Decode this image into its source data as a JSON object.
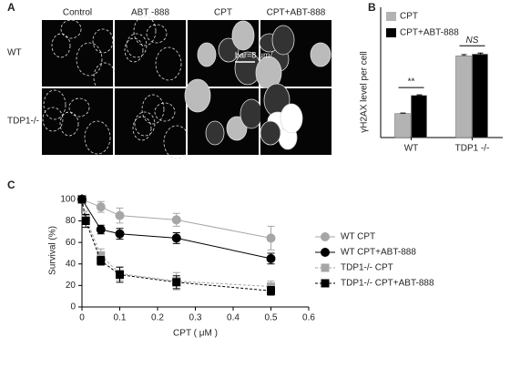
{
  "panel_a": {
    "label": "A",
    "columns": [
      "Control",
      "ABT -888",
      "CPT",
      "CPT+ABT-888"
    ],
    "rows": [
      "WT",
      "TDP1-/-"
    ],
    "scale_bar": "bar=8 μm"
  },
  "chart_data": [
    {
      "type": "bar",
      "label": "B",
      "ylabel": "γH2AX level per cell",
      "categories": [
        "WT",
        "TDP1 -/-"
      ],
      "series": [
        {
          "name": "CPT",
          "color": "#b3b3b3",
          "values": [
            1.0,
            3.4
          ],
          "errors": [
            0.02,
            0.05
          ]
        },
        {
          "name": "CPT+ABT-888",
          "color": "#000000",
          "values": [
            1.75,
            3.47
          ],
          "errors": [
            0.03,
            0.05
          ]
        }
      ],
      "annotations": [
        "**",
        "NS"
      ],
      "ylim": [
        0,
        4.4
      ],
      "legend": "upper left"
    },
    {
      "type": "line",
      "label": "C",
      "xlabel": "CPT ( μM )",
      "ylabel": "Survival (%)",
      "x": [
        0,
        0.01,
        0.05,
        0.1,
        0.25,
        0.5
      ],
      "series": [
        {
          "name": "WT CPT",
          "color": "#a6a6a6",
          "marker": "circle",
          "dashed": false,
          "values": [
            100,
            null,
            93,
            85,
            81,
            64
          ],
          "errors": [
            0,
            null,
            5,
            7,
            6,
            11
          ]
        },
        {
          "name": "WT CPT+ABT-888",
          "color": "#000000",
          "marker": "circle",
          "dashed": false,
          "values": [
            100,
            null,
            72,
            68,
            64,
            45
          ],
          "errors": [
            0,
            null,
            4,
            5,
            5,
            5
          ]
        },
        {
          "name": "TDP1-/- CPT",
          "color": "#a6a6a6",
          "marker": "square",
          "dashed": true,
          "values": [
            100,
            83,
            48,
            31,
            24,
            19
          ],
          "errors": [
            3,
            6,
            6,
            6,
            8,
            5
          ]
        },
        {
          "name": "TDP1-/- CPT+ABT-888",
          "color": "#000000",
          "marker": "square",
          "dashed": true,
          "values": [
            100,
            80,
            43,
            30,
            23,
            15
          ],
          "errors": [
            3,
            6,
            4,
            7,
            6,
            4
          ]
        }
      ],
      "xlim": [
        0,
        0.6
      ],
      "xticks": [
        0,
        0.1,
        0.2,
        0.3,
        0.4,
        0.5,
        0.6
      ],
      "ylim": [
        0,
        105
      ],
      "yticks": [
        0,
        20,
        40,
        60,
        80,
        100
      ],
      "legend": "right"
    }
  ]
}
